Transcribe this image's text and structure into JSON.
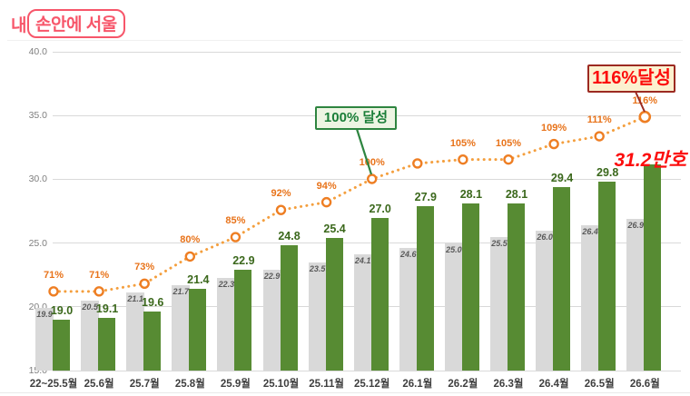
{
  "logo": {
    "prefix": "내",
    "boxed": "손안에 서울"
  },
  "chart_data": {
    "type": "bar",
    "title": "",
    "categories": [
      "22~25.5월",
      "25.6월",
      "25.7월",
      "25.8월",
      "25.9월",
      "25.10월",
      "25.11월",
      "25.12월",
      "26.1월",
      "26.2월",
      "26.3월",
      "26.4월",
      "26.5월",
      "26.6월"
    ],
    "series": [
      {
        "name": "plan-gray",
        "values": [
          19.9,
          20.5,
          21.1,
          21.7,
          22.3,
          22.9,
          23.5,
          24.1,
          24.6,
          25.0,
          25.5,
          26.0,
          26.4,
          26.9
        ]
      },
      {
        "name": "actual-green",
        "values": [
          19.0,
          19.1,
          19.6,
          21.4,
          22.9,
          24.8,
          25.4,
          27.0,
          27.9,
          28.1,
          28.1,
          29.4,
          29.8,
          31.2
        ]
      }
    ],
    "line": {
      "name": "achievement-rate",
      "labels": [
        "71%",
        "71%",
        "73%",
        "80%",
        "85%",
        "92%",
        "94%",
        "100%",
        "",
        "105%",
        "105%",
        "109%",
        "111%",
        "116%"
      ],
      "values": [
        71,
        71,
        73,
        80,
        85,
        92,
        94,
        100,
        104,
        105,
        105,
        109,
        111,
        116
      ]
    },
    "y_ticks": [
      "40.0",
      "35.0",
      "30.0",
      "25.0",
      "20.0",
      "15.0"
    ],
    "ylim": [
      15,
      40
    ],
    "grid": true,
    "legend": "none",
    "annotations": {
      "callout_100": "100% 달성",
      "callout_116": "116%달성",
      "final_value": "31.2만호"
    }
  },
  "colors": {
    "gray_bar": "#d9d9d9",
    "green_bar": "#578b33",
    "green_label": "#3b681c",
    "orange_line": "#f49f3e",
    "orange_ring": "#ee7e23",
    "pct_label": "#e8731a",
    "green_callout_border": "#2e8540",
    "red_callout_border": "#9c2a21",
    "red_text": "#fc0d0d",
    "logo_pink": "#f7566a"
  }
}
